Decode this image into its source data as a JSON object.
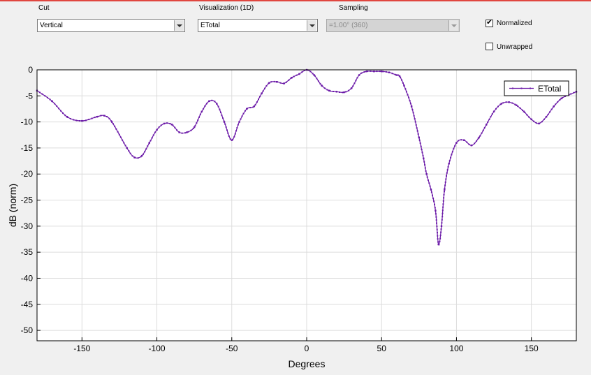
{
  "controls": {
    "cut": {
      "label": "Cut",
      "value": "Vertical"
    },
    "visualization": {
      "label": "Visualization (1D)",
      "value": "ETotal"
    },
    "sampling": {
      "label": "Sampling",
      "value": "=1.00° (360)"
    },
    "normalized": {
      "label": "Normalized",
      "checked": true
    },
    "unwrapped": {
      "label": "Unwrapped",
      "checked": false
    }
  },
  "chart_data": {
    "type": "line",
    "xlabel": "Degrees",
    "ylabel": "dB (norm)",
    "xlim": [
      -180,
      180
    ],
    "ylim": [
      -52,
      0
    ],
    "xticks": [
      -150,
      -100,
      -50,
      0,
      50,
      100,
      150
    ],
    "yticks": [
      0,
      -5,
      -10,
      -15,
      -20,
      -25,
      -30,
      -35,
      -40,
      -45,
      -50
    ],
    "grid": true,
    "legend": "top-right",
    "line_color": "#6b1aa8",
    "series": [
      {
        "name": "ETotal",
        "x": [
          -180,
          -170,
          -160,
          -150,
          -140,
          -135,
          -130,
          -120,
          -115,
          -110,
          -105,
          -100,
          -95,
          -90,
          -85,
          -80,
          -75,
          -70,
          -65,
          -60,
          -55,
          -50,
          -45,
          -40,
          -35,
          -30,
          -25,
          -20,
          -15,
          -10,
          -5,
          0,
          5,
          10,
          15,
          20,
          25,
          30,
          35,
          40,
          45,
          50,
          55,
          60,
          62,
          65,
          70,
          75,
          78,
          80,
          83,
          86,
          88,
          90,
          92,
          95,
          100,
          105,
          110,
          115,
          120,
          125,
          130,
          135,
          140,
          145,
          150,
          155,
          160,
          165,
          170,
          175,
          180
        ],
        "y": [
          -4,
          -6,
          -9,
          -9.8,
          -9,
          -8.8,
          -10,
          -15,
          -16.8,
          -16.5,
          -14,
          -11.5,
          -10.3,
          -10.5,
          -12,
          -12,
          -11,
          -8,
          -6,
          -6.5,
          -10,
          -13.5,
          -10,
          -7.5,
          -7,
          -4.5,
          -2.5,
          -2.3,
          -2.6,
          -1.5,
          -0.8,
          0,
          -1,
          -3,
          -4,
          -4.2,
          -4.3,
          -3.5,
          -1,
          -0.3,
          -0.3,
          -0.3,
          -0.5,
          -1,
          -1.2,
          -3,
          -7,
          -13,
          -17,
          -20,
          -23,
          -27,
          -33.5,
          -30,
          -23,
          -18,
          -14,
          -13.5,
          -14.5,
          -13,
          -10.5,
          -8,
          -6.5,
          -6.2,
          -6.8,
          -8,
          -9.5,
          -10.3,
          -9,
          -7,
          -5.5,
          -4.8,
          -4.2
        ]
      }
    ]
  }
}
